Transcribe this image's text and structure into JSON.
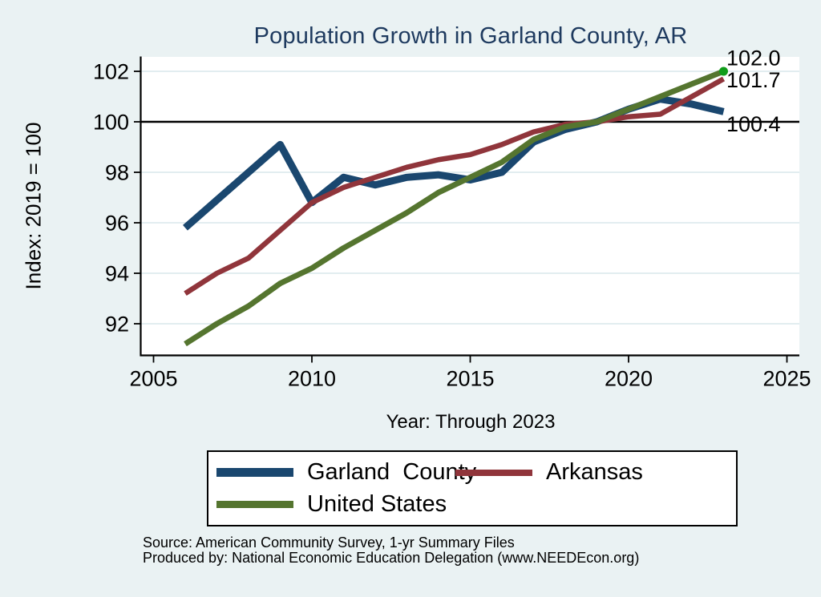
{
  "figure": {
    "title": "Population Growth in Garland County, AR",
    "y_axis_title": "Index: 2019 = 100",
    "x_axis_title": "Year: Through 2023",
    "source_line1": "Source: American Community Survey, 1-yr Summary Files",
    "source_line2": "Produced by: National Economic Education Delegation (www.NEEDEcon.org)"
  },
  "colors": {
    "page_background": "#eaf2f3",
    "plot_background": "#ffffff",
    "gridline": "#e2edf0",
    "axis": "#000000",
    "title_text": "#1e3a5f",
    "garland_county": "#1a476f",
    "arkansas": "#90353b",
    "united_states": "#55752f",
    "end_marker": "#0f9c19"
  },
  "chart_data": {
    "type": "line",
    "title": "Population Growth in Garland County, AR",
    "xlabel": "Year: Through 2023",
    "ylabel": "Index: 2019 = 100",
    "x": [
      2006,
      2007,
      2008,
      2009,
      2010,
      2011,
      2012,
      2013,
      2014,
      2015,
      2016,
      2017,
      2018,
      2019,
      2020,
      2021,
      2022,
      2023
    ],
    "series": [
      {
        "name": "Garland  County",
        "color": "#1a476f",
        "line_width": 9,
        "end_label": "100.4",
        "end_marker": false,
        "values": [
          95.8,
          96.9,
          98.0,
          99.1,
          96.8,
          97.8,
          97.5,
          97.8,
          97.9,
          97.7,
          98.0,
          99.2,
          99.7,
          100.0,
          100.5,
          100.9,
          100.7,
          100.4
        ]
      },
      {
        "name": "Arkansas",
        "color": "#90353b",
        "line_width": 6.5,
        "end_label": "101.7",
        "end_marker": false,
        "values": [
          93.2,
          94.0,
          94.6,
          95.7,
          96.8,
          97.4,
          97.8,
          98.2,
          98.5,
          98.7,
          99.1,
          99.6,
          99.9,
          100.0,
          100.2,
          100.3,
          101.0,
          101.7
        ]
      },
      {
        "name": "United States",
        "color": "#55752f",
        "line_width": 7,
        "end_label": "102.0",
        "end_marker": true,
        "values": [
          91.2,
          92.0,
          92.7,
          93.6,
          94.2,
          95.0,
          95.7,
          96.4,
          97.2,
          97.8,
          98.4,
          99.3,
          99.8,
          100.0,
          100.5,
          101.0,
          101.5,
          102.0
        ]
      }
    ],
    "x_ticks": [
      2005,
      2010,
      2015,
      2020,
      2025
    ],
    "y_ticks": [
      92,
      94,
      96,
      98,
      100,
      102
    ],
    "xlim": [
      2004.6,
      2025.4
    ],
    "ylim": [
      90.7,
      102.5
    ],
    "reference_line_y": 100,
    "grid": "horizontal",
    "legend_position": "bottom"
  }
}
